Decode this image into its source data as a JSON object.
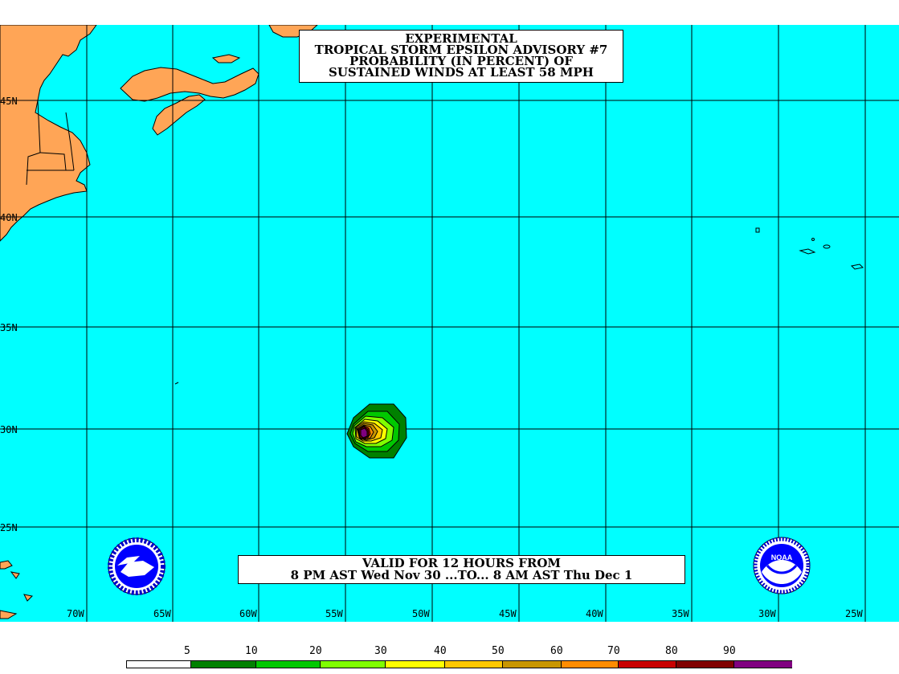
{
  "title": {
    "line1": "EXPERIMENTAL",
    "line2": "TROPICAL STORM EPSILON ADVISORY #7",
    "line3": "PROBABILITY (IN PERCENT) OF",
    "line4": "SUSTAINED WINDS AT LEAST 58 MPH"
  },
  "valid": {
    "line1": "VALID FOR 12 HOURS FROM",
    "line2": "8 PM AST Wed Nov 30 ...TO... 8 AM AST Thu Dec 1"
  },
  "latitude_labels": [
    "45N",
    "40N",
    "35N",
    "30N",
    "25N"
  ],
  "longitude_labels": [
    "70W",
    "65W",
    "60W",
    "55W",
    "50W",
    "45W",
    "40W",
    "35W",
    "30W",
    "25W"
  ],
  "legend": {
    "labels": [
      "5",
      "10",
      "20",
      "30",
      "40",
      "50",
      "60",
      "70",
      "80",
      "90"
    ],
    "colors": [
      "#ffffff",
      "#008000",
      "#00c800",
      "#80ff00",
      "#ffff00",
      "#ffc800",
      "#c89600",
      "#ff8c00",
      "#c80000",
      "#800000",
      "#800080"
    ]
  },
  "colors": {
    "ocean": "#00ffff",
    "land": "#ffa556",
    "grid": "#000000"
  },
  "logos": {
    "left": "NATIONAL WEATHER SERVICE",
    "right": "NOAA"
  },
  "icons": {
    "left_logo": "nws-logo-icon",
    "right_logo": "noaa-logo-icon"
  }
}
